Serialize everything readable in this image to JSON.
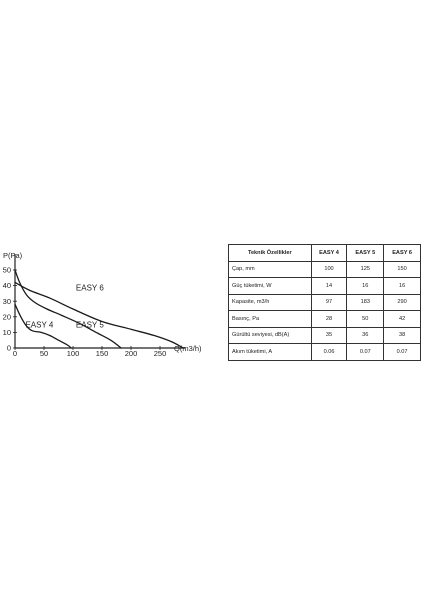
{
  "chart_data": {
    "type": "line",
    "xlabel": "Q(m3/h)",
    "ylabel": "P(Pa)",
    "xlim": [
      0,
      300
    ],
    "ylim": [
      0,
      50
    ],
    "xticks": [
      "0",
      "50",
      "100",
      "150",
      "200",
      "250"
    ],
    "yticks": [
      "0",
      "10",
      "20",
      "30",
      "40",
      "50"
    ],
    "grid": false,
    "series": [
      {
        "name": "EASY 4",
        "points": [
          [
            0,
            28
          ],
          [
            10,
            20
          ],
          [
            20,
            14
          ],
          [
            30,
            11
          ],
          [
            45,
            10
          ],
          [
            60,
            8
          ],
          [
            75,
            5
          ],
          [
            90,
            2
          ],
          [
            97,
            0
          ]
        ]
      },
      {
        "name": "EASY 5",
        "points": [
          [
            0,
            50
          ],
          [
            8,
            42
          ],
          [
            20,
            34
          ],
          [
            35,
            29
          ],
          [
            55,
            25
          ],
          [
            80,
            21
          ],
          [
            110,
            16
          ],
          [
            140,
            10
          ],
          [
            165,
            5
          ],
          [
            183,
            0
          ]
        ]
      },
      {
        "name": "EASY 6",
        "points": [
          [
            0,
            42
          ],
          [
            25,
            37
          ],
          [
            60,
            32
          ],
          [
            100,
            25
          ],
          [
            150,
            17
          ],
          [
            200,
            12
          ],
          [
            240,
            8
          ],
          [
            270,
            4
          ],
          [
            290,
            0
          ]
        ]
      }
    ]
  },
  "table": {
    "headers": [
      "Teknik Özellikler",
      "EASY 4",
      "EASY 5",
      "EASY 6"
    ],
    "rows": [
      [
        "Çap, mm",
        "100",
        "125",
        "150"
      ],
      [
        "Güç tüketimi, W",
        "14",
        "16",
        "16"
      ],
      [
        "Kapasite, m3/h",
        "97",
        "183",
        "290"
      ],
      [
        "Basınç, Pa",
        "28",
        "50",
        "42"
      ],
      [
        "Gürültü seviyesi, dB(A)",
        "35",
        "36",
        "38"
      ],
      [
        "Akım tüketimi, A",
        "0.06",
        "0.07",
        "0.07"
      ]
    ]
  }
}
